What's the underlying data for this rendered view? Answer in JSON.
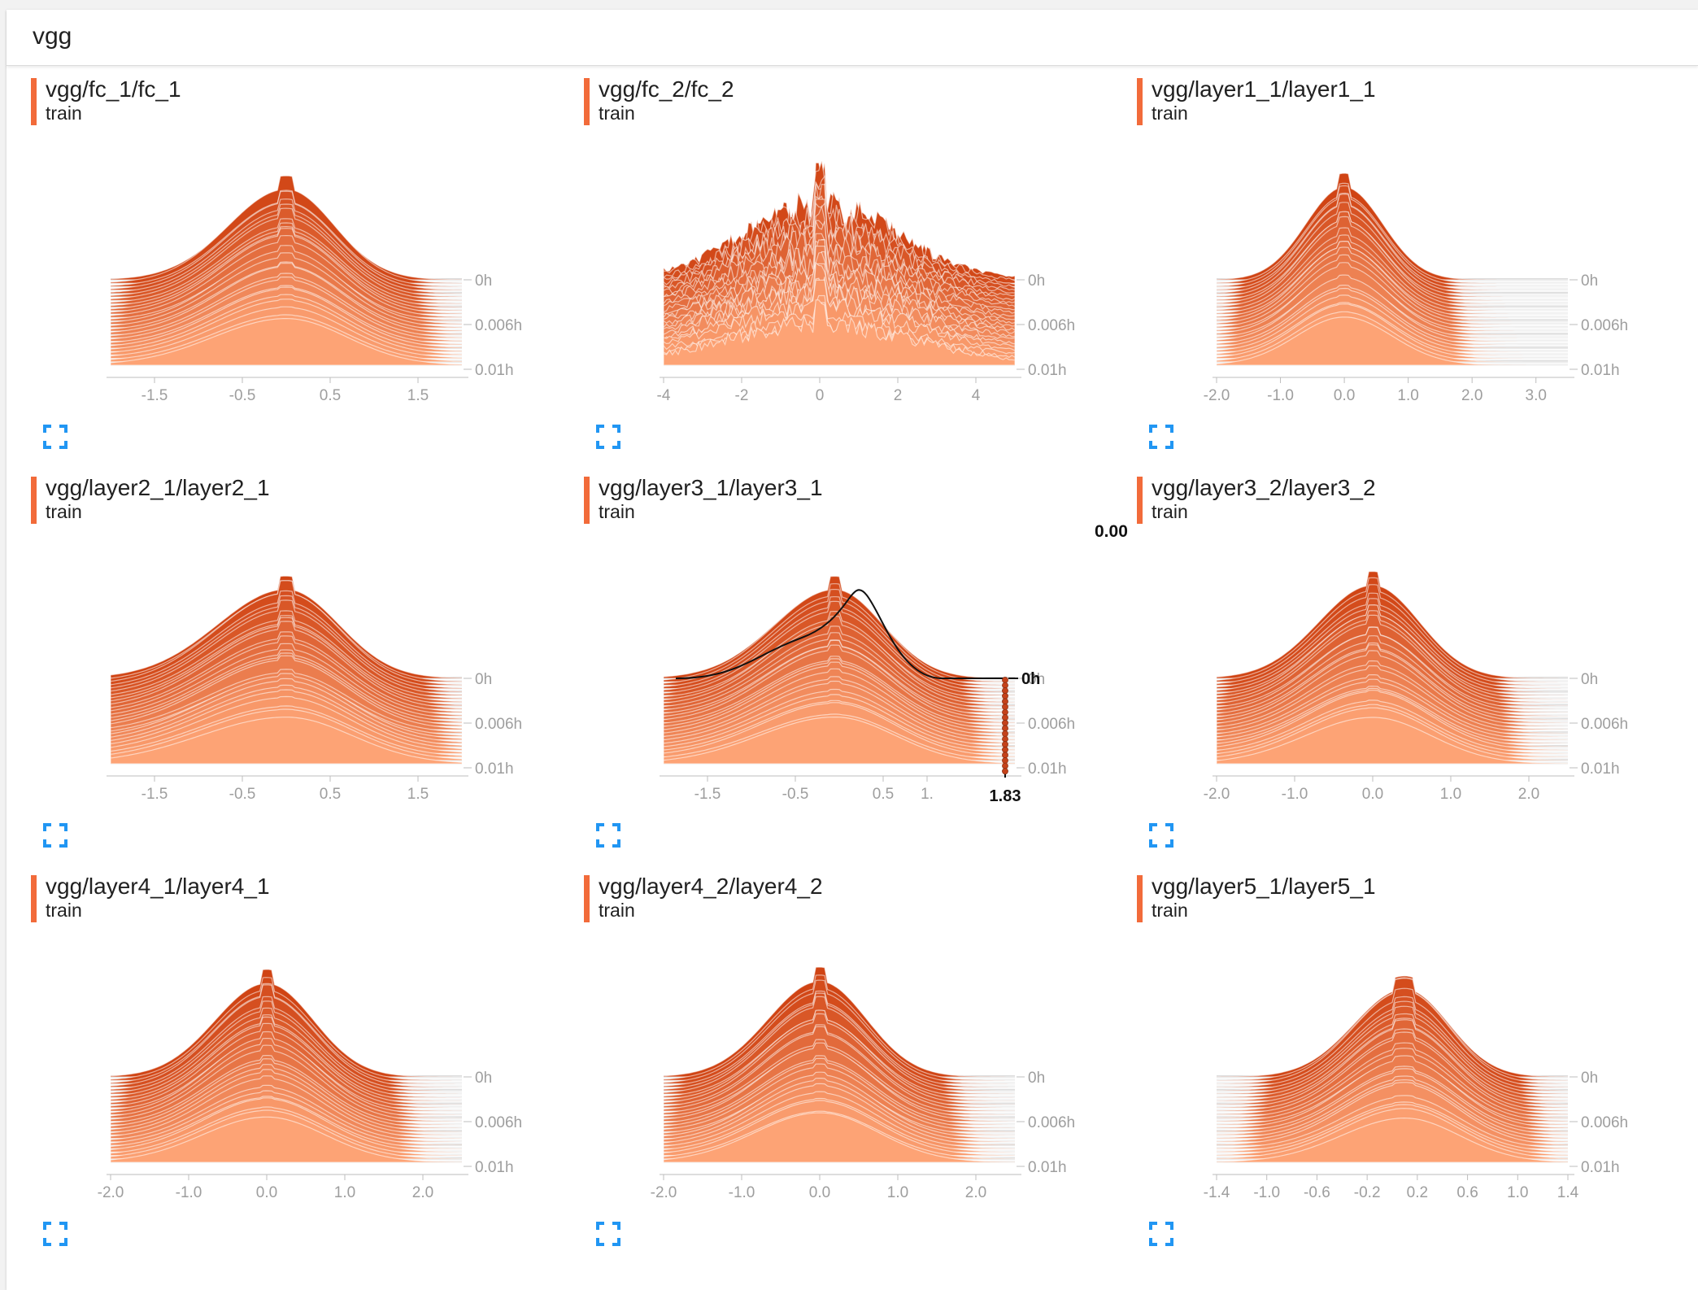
{
  "header": {
    "title": "vgg"
  },
  "expand_icon": "fullscreen-icon",
  "colors": {
    "accent": "#f26b3a",
    "oldest": "#fda375",
    "newest": "#d04414",
    "expand": "#2196f3"
  },
  "cards": [
    {
      "id": "fc_1",
      "title": "vgg/fc_1/fc_1",
      "run": "train",
      "x_ticks": [
        "-1.5",
        "-0.5",
        "0.5",
        "1.5"
      ],
      "x_range": [
        -2.0,
        2.0
      ],
      "peak_x": 0.0,
      "width": 0.55,
      "skew": 0.2,
      "y_ticks": [
        "0h",
        "0.006h",
        "0.01h"
      ]
    },
    {
      "id": "fc_2",
      "title": "vgg/fc_2/fc_2",
      "run": "train",
      "x_ticks": [
        "-4",
        "-2",
        "0",
        "2",
        "4"
      ],
      "x_range": [
        -4.0,
        5.0
      ],
      "peak_x": 0.0,
      "width": 2.0,
      "skew": 0.0,
      "y_ticks": [
        "0h",
        "0.006h",
        "0.01h"
      ]
    },
    {
      "id": "layer1_1",
      "title": "vgg/layer1_1/layer1_1",
      "run": "train",
      "x_ticks": [
        "-2.0",
        "-1.0",
        "0.0",
        "1.0",
        "2.0",
        "3.0"
      ],
      "x_range": [
        -2.0,
        3.5
      ],
      "peak_x": 0.0,
      "width": 0.6,
      "skew": 0.0,
      "y_ticks": [
        "0h",
        "0.006h",
        "0.01h"
      ]
    },
    {
      "id": "layer2_1",
      "title": "vgg/layer2_1/layer2_1",
      "run": "train",
      "x_ticks": [
        "-1.5",
        "-0.5",
        "0.5",
        "1.5"
      ],
      "x_range": [
        -2.0,
        2.0
      ],
      "peak_x": 0.0,
      "width": 0.6,
      "skew": 0.3,
      "y_ticks": [
        "0h",
        "0.006h",
        "0.01h"
      ]
    },
    {
      "id": "layer3_1",
      "title": "vgg/layer3_1/layer3_1",
      "run": "train",
      "x_ticks": [
        "-1.5",
        "-0.5",
        "0.5",
        "1."
      ],
      "x_range": [
        -2.0,
        2.0
      ],
      "peak_x": -0.05,
      "width": 0.55,
      "skew": 0.25,
      "y_ticks": [
        "0h",
        "0.006h",
        "0.01h"
      ],
      "hover": {
        "value": "0.00",
        "x": "1.83",
        "time": "0h"
      }
    },
    {
      "id": "layer3_2",
      "title": "vgg/layer3_2/layer3_2",
      "run": "train",
      "x_ticks": [
        "-2.0",
        "-1.0",
        "0.0",
        "1.0",
        "2.0"
      ],
      "x_range": [
        -2.0,
        2.5
      ],
      "peak_x": 0.0,
      "width": 0.6,
      "skew": 0.15,
      "y_ticks": [
        "0h",
        "0.006h",
        "0.01h"
      ]
    },
    {
      "id": "layer4_1",
      "title": "vgg/layer4_1/layer4_1",
      "run": "train",
      "x_ticks": [
        "-2.0",
        "-1.0",
        "0.0",
        "1.0",
        "2.0"
      ],
      "x_range": [
        -2.0,
        2.5
      ],
      "peak_x": 0.0,
      "width": 0.6,
      "skew": 0.1,
      "y_ticks": [
        "0h",
        "0.006h",
        "0.01h"
      ]
    },
    {
      "id": "layer4_2",
      "title": "vgg/layer4_2/layer4_2",
      "run": "train",
      "x_ticks": [
        "-2.0",
        "-1.0",
        "0.0",
        "1.0",
        "2.0"
      ],
      "x_range": [
        -2.0,
        2.5
      ],
      "peak_x": 0.0,
      "width": 0.6,
      "skew": 0.1,
      "y_ticks": [
        "0h",
        "0.006h",
        "0.01h"
      ]
    },
    {
      "id": "layer5_1",
      "title": "vgg/layer5_1/layer5_1",
      "run": "train",
      "x_ticks": [
        "-1.4",
        "-1.0",
        "-0.6",
        "-0.2",
        "0.2",
        "0.6",
        "1.0",
        "1.4"
      ],
      "x_range": [
        -1.4,
        1.4
      ],
      "peak_x": 0.1,
      "width": 0.35,
      "skew": 0.15,
      "y_ticks": [
        "0h",
        "0.006h",
        "0.01h"
      ]
    }
  ]
}
